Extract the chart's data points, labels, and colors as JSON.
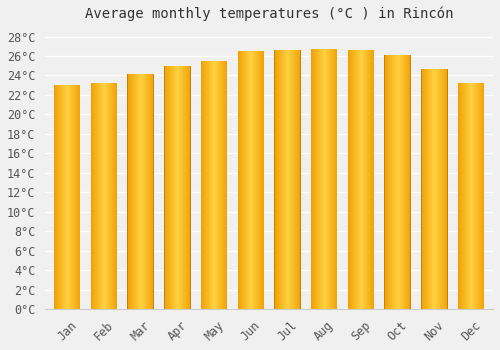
{
  "title": "Average monthly temperatures (°C ) in Rincón",
  "months": [
    "Jan",
    "Feb",
    "Mar",
    "Apr",
    "May",
    "Jun",
    "Jul",
    "Aug",
    "Sep",
    "Oct",
    "Nov",
    "Dec"
  ],
  "values": [
    23.0,
    23.2,
    24.1,
    25.0,
    25.5,
    26.5,
    26.6,
    26.7,
    26.6,
    26.1,
    24.7,
    23.2
  ],
  "bar_color_center": "#FFD060",
  "bar_color_edge": "#F5A000",
  "ylim": [
    0,
    29
  ],
  "ytick_step": 2,
  "background_color": "#f0f0f0",
  "grid_color": "#ffffff",
  "title_fontsize": 10,
  "tick_fontsize": 8.5,
  "bar_width": 0.72
}
